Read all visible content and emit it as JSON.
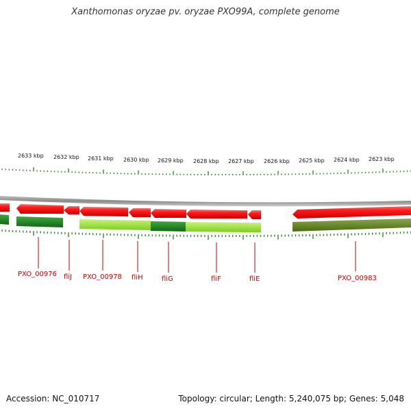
{
  "title": "Xanthomonas oryzae pv. oryzae PXO99A, complete genome",
  "footer": {
    "accession": "Accession: NC_010717",
    "summary": "Topology: circular; Length: 5,240,075 bp; Genes: 5,048"
  },
  "kbp_labels": [
    "2633 kbp",
    "2632 kbp",
    "2631 kbp",
    "2630 kbp",
    "2629 kbp",
    "2628 kbp",
    "2627 kbp",
    "2626 kbp",
    "2625 kbp",
    "2624 kbp",
    "2623 kbp"
  ],
  "gene_labels": [
    "PXO_00976",
    "fliJ",
    "PXO_00978",
    "fliH",
    "fliG",
    "fliF",
    "fliE",
    "PXO_00983"
  ],
  "colors": {
    "forward_gene": "#ee0000",
    "reverse_dark": "#1f7a1f",
    "reverse_light": "#88dd22",
    "reverse_olive": "#5a7a1c",
    "tick_green": "#2e8b2e",
    "backbone": "#888888"
  }
}
